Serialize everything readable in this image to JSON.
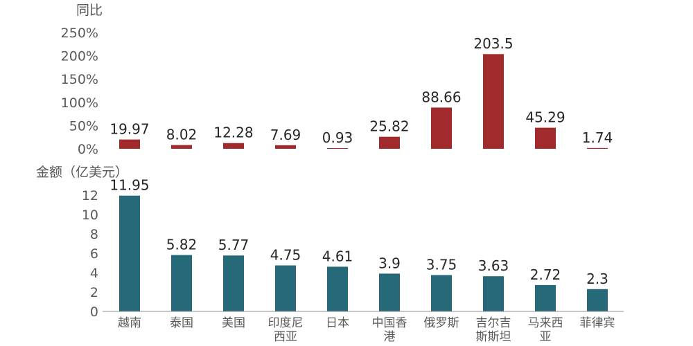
{
  "chart_data": [
    {
      "type": "bar",
      "ylabel": "同比",
      "categories": [
        "越南",
        "泰国",
        "美国",
        "印度尼西亚",
        "日本",
        "中国香港",
        "俄罗斯",
        "吉尔吉斯斯坦",
        "马来西亚",
        "菲律宾"
      ],
      "values": [
        19.97,
        8.02,
        12.28,
        7.69,
        0.93,
        25.82,
        88.66,
        203.5,
        45.29,
        1.74
      ],
      "data_labels": [
        "19.97",
        "8.02",
        "12.28",
        "7.69",
        "0.93",
        "25.82",
        "88.66",
        "203.5",
        "45.29",
        "1.74"
      ],
      "yticks": [
        0,
        50,
        100,
        150,
        200,
        250
      ],
      "ytick_labels": [
        "0%",
        "50%",
        "100%",
        "150%",
        "200%",
        "250%"
      ],
      "ylim": [
        0,
        250
      ],
      "color": "#a12a2d",
      "grid": false
    },
    {
      "type": "bar",
      "ylabel": "金额（亿美元）",
      "categories": [
        "越南",
        "泰国",
        "美国",
        "印度尼西亚",
        "日本",
        "中国香港",
        "俄罗斯",
        "吉尔吉斯斯坦",
        "马来西亚",
        "菲律宾"
      ],
      "category_lines": [
        [
          "越南"
        ],
        [
          "泰国"
        ],
        [
          "美国"
        ],
        [
          "印度尼",
          "西亚"
        ],
        [
          "日本"
        ],
        [
          "中国香",
          "港"
        ],
        [
          "俄罗斯"
        ],
        [
          "吉尔吉",
          "斯斯坦"
        ],
        [
          "马来西",
          "亚"
        ],
        [
          "菲律宾"
        ]
      ],
      "values": [
        11.95,
        5.82,
        5.77,
        4.75,
        4.61,
        3.9,
        3.75,
        3.63,
        2.72,
        2.3
      ],
      "data_labels": [
        "11.95",
        "5.82",
        "5.77",
        "4.75",
        "4.61",
        "3.9",
        "3.75",
        "3.63",
        "2.72",
        "2.3"
      ],
      "yticks": [
        0,
        2,
        4,
        6,
        8,
        10,
        12
      ],
      "ytick_labels": [
        "0",
        "2",
        "4",
        "6",
        "8",
        "10",
        "12"
      ],
      "ylim": [
        0,
        12
      ],
      "color": "#266a79",
      "grid": false
    }
  ]
}
